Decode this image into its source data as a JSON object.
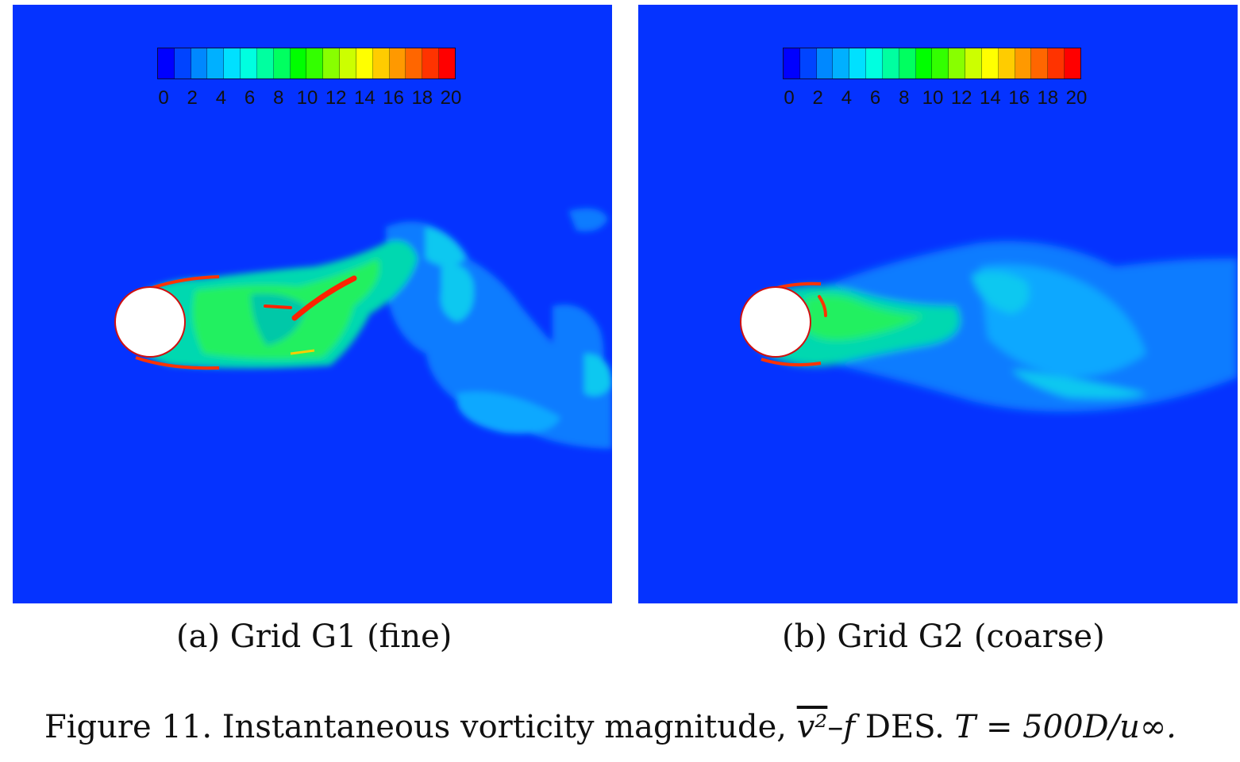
{
  "colorbar": {
    "colors": [
      "#0000ff",
      "#0044ff",
      "#0088ff",
      "#00b0ff",
      "#00e0ff",
      "#00ffe0",
      "#00ffa0",
      "#00ff60",
      "#00ff00",
      "#33ff00",
      "#88ff00",
      "#ccff00",
      "#ffff00",
      "#ffcc00",
      "#ff9900",
      "#ff6600",
      "#ff3300",
      "#ff0000"
    ],
    "tick_labels": [
      "0",
      "2",
      "4",
      "6",
      "8",
      "10",
      "12",
      "14",
      "16",
      "18",
      "20"
    ]
  },
  "panels": [
    {
      "caption": "(a) Grid G1 (fine)"
    },
    {
      "caption": "(b) Grid G2 (coarse)"
    }
  ],
  "figure_caption": {
    "prefix": "Figure 11. Instantaneous vorticity magnitude, ",
    "v2": "v²",
    "mid": "–",
    "f": "f",
    "des": " DES. ",
    "eq": "T = 500D/u∞."
  },
  "colors": {
    "background": "#0533ff",
    "cylinder": "#ffffff"
  }
}
